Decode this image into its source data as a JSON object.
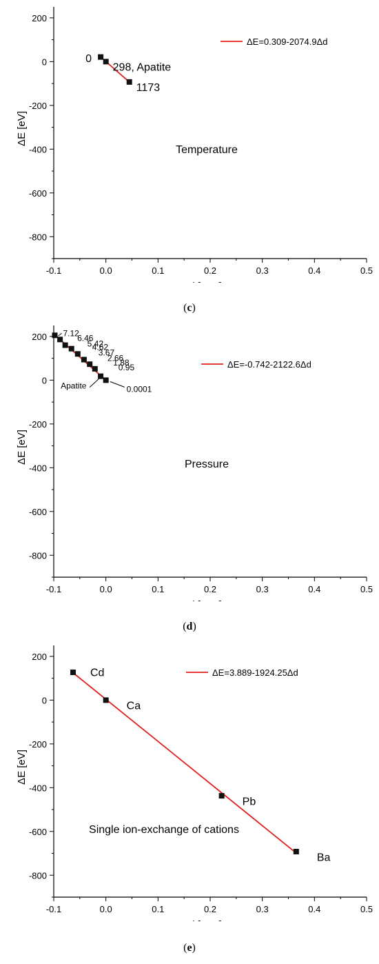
{
  "chart_data": [
    {
      "type": "scatter",
      "panel": "c",
      "caption": "c",
      "xlabel": "Δd [Ang]",
      "ylabel": "ΔE [eV]",
      "xlim": [
        -0.1,
        0.5
      ],
      "ylim": [
        -900,
        250
      ],
      "xticks": [
        "-0.1",
        "0.0",
        "0.1",
        "0.2",
        "0.3",
        "0.4",
        "0.5"
      ],
      "yticks": [
        "200",
        "0",
        "-200",
        "-400",
        "-600",
        "-800"
      ],
      "series": [
        {
          "name": "ΔE=0.309-2074.9Δd",
          "fit": {
            "intercept": 0.309,
            "slope": -2074.9,
            "x_range": [
              0.0,
              0.045
            ]
          }
        }
      ],
      "points": [
        {
          "x": -0.01,
          "y": 21,
          "label": "0"
        },
        {
          "x": 0.0,
          "y": 0,
          "label": "298, Apatite"
        },
        {
          "x": 0.045,
          "y": -93,
          "label": "1173"
        }
      ],
      "annotation": "Temperature",
      "legend_position": "top-right",
      "grid": false
    },
    {
      "type": "scatter",
      "panel": "d",
      "caption": "d",
      "xlabel": "Δd [Ang]",
      "ylabel": "ΔE [eV]",
      "xlim": [
        -0.1,
        0.5
      ],
      "ylim": [
        -900,
        250
      ],
      "xticks": [
        "-0.1",
        "0.0",
        "0.1",
        "0.2",
        "0.3",
        "0.4",
        "0.5"
      ],
      "yticks": [
        "200",
        "0",
        "-200",
        "-400",
        "-600",
        "-800"
      ],
      "series": [
        {
          "name": "ΔE=-0.742-2122.6Δd",
          "fit": {
            "intercept": -0.742,
            "slope": -2122.6,
            "x_range": [
              -0.098,
              0.0
            ]
          }
        }
      ],
      "points": [
        {
          "x": -0.098,
          "y": 205,
          "label": "7.12"
        },
        {
          "x": -0.088,
          "y": 186,
          "label": "6.46"
        },
        {
          "x": -0.078,
          "y": 160,
          "label": "5.42"
        },
        {
          "x": -0.066,
          "y": 144,
          "label": "4.62"
        },
        {
          "x": -0.054,
          "y": 120,
          "label": "3.67"
        },
        {
          "x": -0.042,
          "y": 94,
          "label": "2.66"
        },
        {
          "x": -0.031,
          "y": 73,
          "label": "1.88"
        },
        {
          "x": -0.021,
          "y": 52,
          "label": "0.95"
        },
        {
          "x": -0.01,
          "y": 18,
          "label": "Apatite"
        },
        {
          "x": 0.0,
          "y": 0,
          "label": "0.0001"
        }
      ],
      "annotation": "Pressure",
      "legend_position": "top-right",
      "grid": false
    },
    {
      "type": "scatter",
      "panel": "e",
      "caption": "e",
      "xlabel": "Δd [Ang]",
      "ylabel": "ΔE [eV]",
      "xlim": [
        -0.1,
        0.5
      ],
      "ylim": [
        -900,
        250
      ],
      "xticks": [
        "-0.1",
        "0.0",
        "0.1",
        "0.2",
        "0.3",
        "0.4",
        "0.5"
      ],
      "yticks": [
        "200",
        "0",
        "-200",
        "-400",
        "-600",
        "-800"
      ],
      "series": [
        {
          "name": "ΔE=3.889-1924.25Δd",
          "fit": {
            "intercept": 3.889,
            "slope": -1924.25,
            "x_range": [
              -0.063,
              0.365
            ]
          }
        }
      ],
      "points": [
        {
          "x": -0.063,
          "y": 127,
          "label": "Cd"
        },
        {
          "x": 0.0,
          "y": 0,
          "label": "Ca"
        },
        {
          "x": 0.222,
          "y": -437,
          "label": "Pb"
        },
        {
          "x": 0.365,
          "y": -692,
          "label": "Ba"
        }
      ],
      "annotation": "Single ion-exchange of cations",
      "legend_position": "top-right",
      "grid": false
    }
  ],
  "colors": {
    "fit_line": "#e01e1e",
    "marker": "#111111",
    "axis": "#000000"
  }
}
